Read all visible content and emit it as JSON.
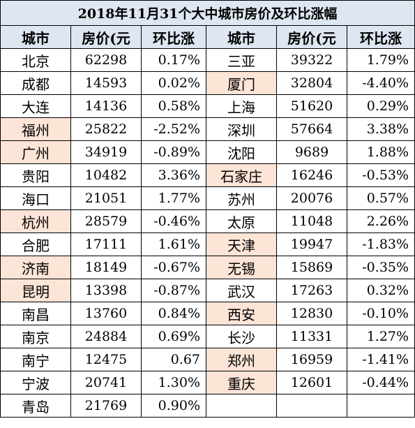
{
  "title": "2018年11月31个大中城市房价及环比涨幅",
  "headers": [
    "城市",
    "房价(元",
    "环比涨",
    "城市",
    "房价(元",
    "环比涨"
  ],
  "highlight_color": "#fce4d6",
  "header_color": "#dde6f1",
  "rows": [
    {
      "l": {
        "city": "北京",
        "price": "62298",
        "chg": "0.17%",
        "hl": false
      },
      "r": {
        "city": "三亚",
        "price": "39322",
        "chg": "1.79%",
        "hl": false
      }
    },
    {
      "l": {
        "city": "成都",
        "price": "14593",
        "chg": "0.02%",
        "hl": false
      },
      "r": {
        "city": "厦门",
        "price": "32804",
        "chg": "-4.40%",
        "hl": true
      }
    },
    {
      "l": {
        "city": "大连",
        "price": "14136",
        "chg": "0.58%",
        "hl": false
      },
      "r": {
        "city": "上海",
        "price": "51620",
        "chg": "0.29%",
        "hl": false
      }
    },
    {
      "l": {
        "city": "福州",
        "price": "25822",
        "chg": "-2.52%",
        "hl": true
      },
      "r": {
        "city": "深圳",
        "price": "57664",
        "chg": "3.38%",
        "hl": false
      }
    },
    {
      "l": {
        "city": "广州",
        "price": "34919",
        "chg": "-0.89%",
        "hl": true
      },
      "r": {
        "city": "沈阳",
        "price": "9689",
        "chg": "1.88%",
        "hl": false
      }
    },
    {
      "l": {
        "city": "贵阳",
        "price": "10482",
        "chg": "3.36%",
        "hl": false
      },
      "r": {
        "city": "石家庄",
        "price": "16246",
        "chg": "-0.53%",
        "hl": true
      }
    },
    {
      "l": {
        "city": "海口",
        "price": "21051",
        "chg": "1.77%",
        "hl": false
      },
      "r": {
        "city": "苏州",
        "price": "20076",
        "chg": "0.57%",
        "hl": false
      }
    },
    {
      "l": {
        "city": "杭州",
        "price": "28579",
        "chg": "-0.46%",
        "hl": true
      },
      "r": {
        "city": "太原",
        "price": "11048",
        "chg": "2.26%",
        "hl": false
      }
    },
    {
      "l": {
        "city": "合肥",
        "price": "17111",
        "chg": "1.61%",
        "hl": false
      },
      "r": {
        "city": "天津",
        "price": "19947",
        "chg": "-1.83%",
        "hl": true
      }
    },
    {
      "l": {
        "city": "济南",
        "price": "18149",
        "chg": "-0.67%",
        "hl": true
      },
      "r": {
        "city": "无锡",
        "price": "15869",
        "chg": "-0.35%",
        "hl": true
      }
    },
    {
      "l": {
        "city": "昆明",
        "price": "13398",
        "chg": "-0.87%",
        "hl": true
      },
      "r": {
        "city": "武汉",
        "price": "17263",
        "chg": "0.32%",
        "hl": false
      }
    },
    {
      "l": {
        "city": "南昌",
        "price": "13760",
        "chg": "0.84%",
        "hl": false
      },
      "r": {
        "city": "西安",
        "price": "12830",
        "chg": "-0.10%",
        "hl": true
      }
    },
    {
      "l": {
        "city": "南京",
        "price": "24884",
        "chg": "0.69%",
        "hl": false
      },
      "r": {
        "city": "长沙",
        "price": "11331",
        "chg": "1.27%",
        "hl": false
      }
    },
    {
      "l": {
        "city": "南宁",
        "price": "12475",
        "chg": "0.67",
        "hl": false
      },
      "r": {
        "city": "郑州",
        "price": "16959",
        "chg": "-1.41%",
        "hl": true
      }
    },
    {
      "l": {
        "city": "宁波",
        "price": "20741",
        "chg": "1.30%",
        "hl": false
      },
      "r": {
        "city": "重庆",
        "price": "12601",
        "chg": "-0.44%",
        "hl": true
      }
    },
    {
      "l": {
        "city": "青岛",
        "price": "21769",
        "chg": "0.90%",
        "hl": false
      },
      "r": null
    }
  ]
}
